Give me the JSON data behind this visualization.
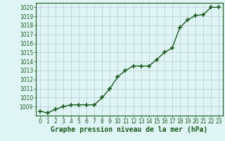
{
  "x": [
    0,
    1,
    2,
    3,
    4,
    5,
    6,
    7,
    8,
    9,
    10,
    11,
    12,
    13,
    14,
    15,
    16,
    17,
    18,
    19,
    20,
    21,
    22,
    23
  ],
  "y": [
    1008.5,
    1008.3,
    1008.7,
    1009.0,
    1009.2,
    1009.2,
    1009.2,
    1009.2,
    1010.0,
    1011.0,
    1012.3,
    1013.0,
    1013.5,
    1013.5,
    1013.5,
    1014.2,
    1015.0,
    1015.5,
    1017.8,
    1018.6,
    1019.1,
    1019.2,
    1020.0,
    1020.0
  ],
  "ylim": [
    1008.0,
    1020.5
  ],
  "xlim": [
    -0.5,
    23.5
  ],
  "yticks": [
    1009,
    1010,
    1011,
    1012,
    1013,
    1014,
    1015,
    1016,
    1017,
    1018,
    1019,
    1020
  ],
  "xticks": [
    0,
    1,
    2,
    3,
    4,
    5,
    6,
    7,
    8,
    9,
    10,
    11,
    12,
    13,
    14,
    15,
    16,
    17,
    18,
    19,
    20,
    21,
    22,
    23
  ],
  "line_color": "#1a5c1a",
  "marker": "+",
  "marker_size": 4,
  "marker_edge_width": 1.2,
  "line_width": 1.0,
  "bg_color": "#dff5f5",
  "grid_color": "#b8cece",
  "xlabel": "Graphe pression niveau de la mer (hPa)",
  "xlabel_color": "#1a5c1a",
  "xlabel_fontsize": 7,
  "tick_color": "#1a5c1a",
  "tick_fontsize": 5.5
}
